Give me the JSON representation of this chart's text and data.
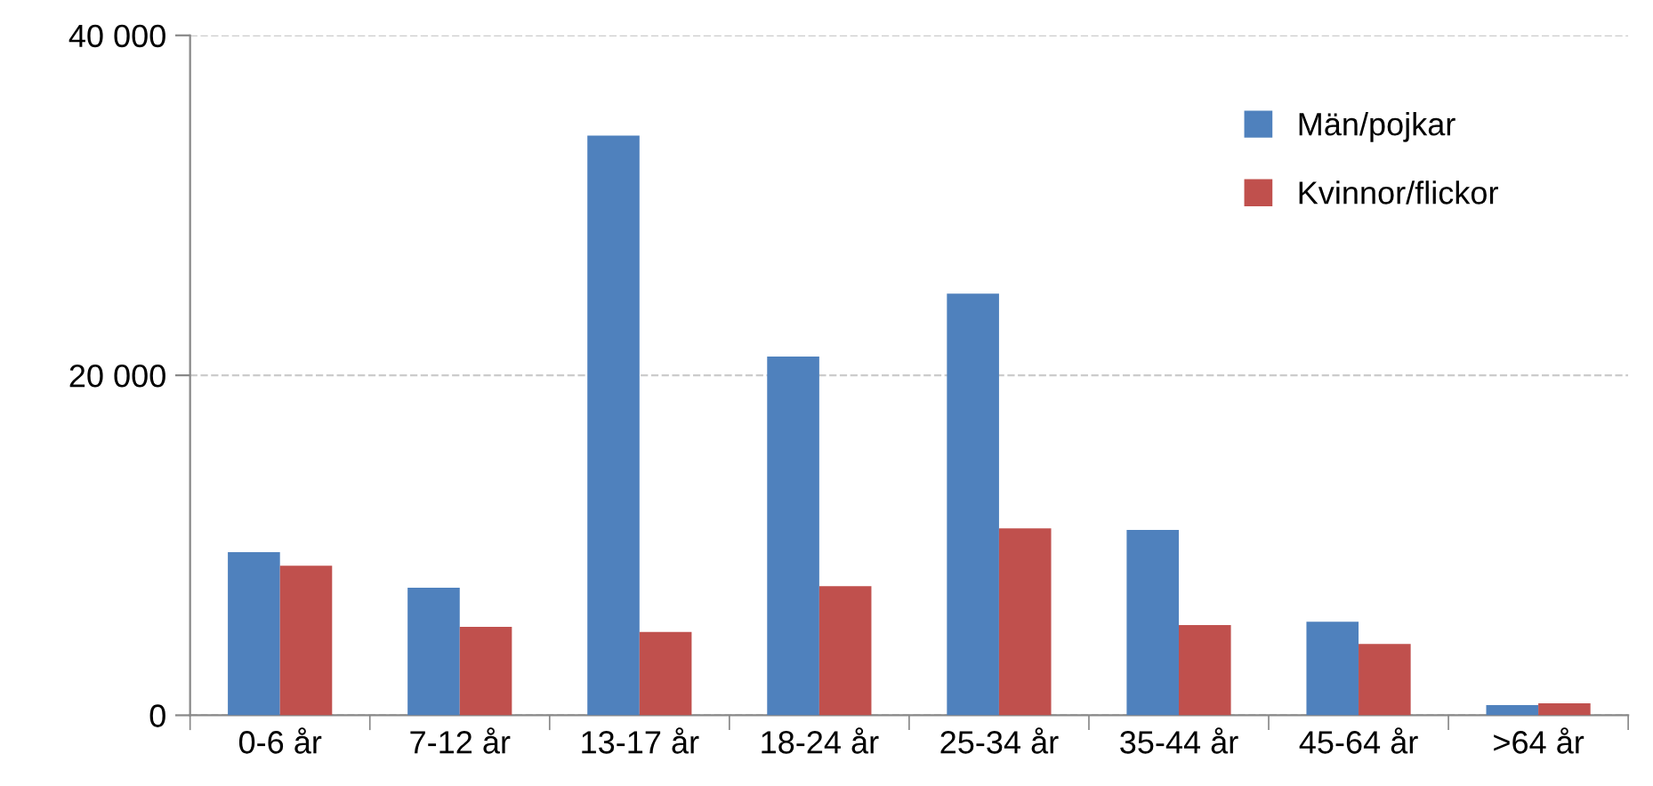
{
  "chart_data": {
    "type": "bar",
    "categories": [
      "0-6 år",
      "7-12 år",
      "13-17 år",
      "18-24 år",
      "25-34 år",
      "35-44 år",
      "45-64 år",
      ">64 år"
    ],
    "series": [
      {
        "name": "Män/pojkar",
        "color": "#4f81bd",
        "values": [
          9600,
          7500,
          34100,
          21100,
          24800,
          10900,
          5500,
          600
        ]
      },
      {
        "name": "Kvinnor/flickor",
        "color": "#c0504d",
        "values": [
          8800,
          5200,
          4900,
          7600,
          11000,
          5300,
          4200,
          700
        ]
      }
    ],
    "ylim": [
      0,
      40000
    ],
    "yticks": [
      0,
      {
        "value": 20000,
        "label": "20 000"
      },
      {
        "value": 40000,
        "label": "40 000"
      }
    ],
    "grid": "y",
    "legend": "top right"
  }
}
